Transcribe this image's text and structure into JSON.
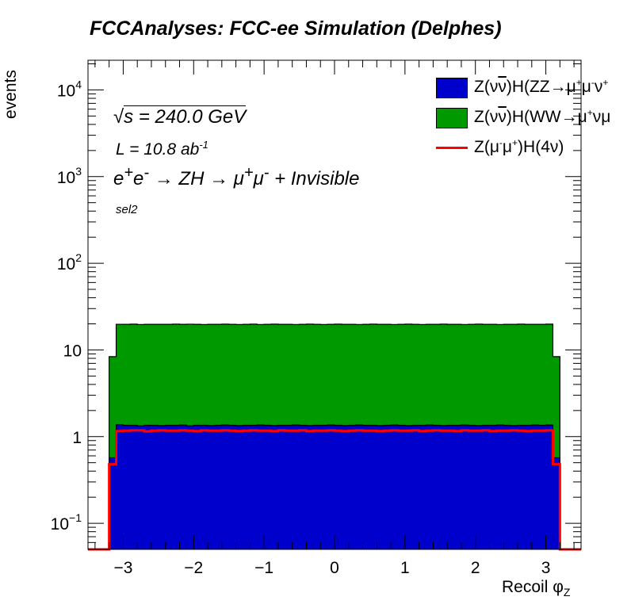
{
  "chart_data": {
    "type": "bar",
    "stacked": true,
    "title": "FCCAnalyses: FCC-ee Simulation (Delphes)",
    "xlabel": "Recoil φ",
    "xlabel_sub": "Z",
    "ylabel": "events",
    "xlim": [
      -3.5,
      3.5
    ],
    "ylim": [
      0.05,
      22000
    ],
    "yscale": "log",
    "x_ticks": [
      "−3",
      "−2",
      "−1",
      "0",
      "1",
      "2",
      "3"
    ],
    "x_tick_values": [
      -3,
      -2,
      -1,
      0,
      1,
      2,
      3
    ],
    "y_ticks": [
      {
        "value": 0.1,
        "base": "10",
        "exp": "−1"
      },
      {
        "value": 1,
        "base": "1",
        "exp": ""
      },
      {
        "value": 10,
        "base": "10",
        "exp": ""
      },
      {
        "value": 100,
        "base": "10",
        "exp": "2"
      },
      {
        "value": 1000,
        "base": "10",
        "exp": "3"
      },
      {
        "value": 10000,
        "base": "10",
        "exp": "4"
      }
    ],
    "bin_start": -3.2,
    "bin_width": 0.1,
    "series": [
      {
        "name": "Z(νν̄)H(ZZ→μ⁺μ⁻ν⁺",
        "label_html": "Z(ν<span style=\"text-decoration:overline\">ν</span>)H(ZZ→μ<sup>+</sup>μ<sup>-</sup>ν<sup>+</sup>",
        "kind": "fill",
        "color": "#0000cc",
        "values": [
          0.57,
          1.37,
          1.35,
          1.35,
          1.33,
          1.35,
          1.35,
          1.34,
          1.35,
          1.35,
          1.36,
          1.33,
          1.35,
          1.35,
          1.34,
          1.35,
          1.36,
          1.35,
          1.34,
          1.35,
          1.35,
          1.36,
          1.35,
          1.34,
          1.35,
          1.35,
          1.36,
          1.35,
          1.34,
          1.35,
          1.35,
          1.36,
          1.35,
          1.34,
          1.35,
          1.36,
          1.35,
          1.35,
          1.34,
          1.35,
          1.36,
          1.35,
          1.34,
          1.35,
          1.35,
          1.36,
          1.35,
          1.34,
          1.35,
          1.35,
          1.36,
          1.35,
          1.34,
          1.35,
          1.35,
          1.36,
          1.35,
          1.34,
          1.35,
          1.35,
          1.36,
          1.35,
          1.36,
          0.57
        ]
      },
      {
        "name": "Z(νν̄)H(WW→μ⁺νμ",
        "label_html": "Z(ν<span style=\"text-decoration:overline\">ν</span>)H(WW→μ<sup>+</sup>νμ",
        "kind": "fill",
        "color": "#009900",
        "values": [
          7.8,
          18.4,
          18.4,
          18.5,
          18.3,
          18.4,
          18.4,
          18.4,
          18.4,
          18.5,
          18.4,
          18.5,
          18.4,
          18.3,
          18.4,
          18.4,
          18.5,
          18.4,
          18.3,
          18.4,
          18.5,
          18.3,
          18.4,
          18.5,
          18.4,
          18.4,
          18.3,
          18.4,
          18.5,
          18.4,
          18.3,
          18.4,
          18.5,
          18.4,
          18.4,
          18.3,
          18.4,
          18.5,
          18.4,
          18.4,
          18.3,
          18.4,
          18.5,
          18.4,
          18.3,
          18.4,
          18.4,
          18.5,
          18.4,
          18.4,
          18.3,
          18.4,
          18.5,
          18.4,
          18.4,
          18.3,
          18.4,
          18.4,
          18.5,
          18.4,
          18.4,
          18.4,
          18.5,
          7.8
        ]
      },
      {
        "name": "Z(μ⁻μ⁺)H(4ν)",
        "label_html": "Z(μ<sup>-</sup>μ<sup>+</sup>)H(4ν)",
        "kind": "line",
        "color": "#ff0000",
        "values": [
          0.48,
          1.16,
          1.17,
          1.18,
          1.18,
          1.15,
          1.17,
          1.18,
          1.17,
          1.17,
          1.18,
          1.17,
          1.16,
          1.18,
          1.17,
          1.17,
          1.18,
          1.17,
          1.16,
          1.17,
          1.18,
          1.17,
          1.17,
          1.16,
          1.18,
          1.17,
          1.17,
          1.18,
          1.16,
          1.17,
          1.17,
          1.18,
          1.17,
          1.16,
          1.17,
          1.18,
          1.17,
          1.17,
          1.16,
          1.17,
          1.18,
          1.17,
          1.17,
          1.18,
          1.16,
          1.17,
          1.18,
          1.17,
          1.17,
          1.16,
          1.18,
          1.17,
          1.17,
          1.18,
          1.16,
          1.17,
          1.17,
          1.18,
          1.17,
          1.16,
          1.17,
          1.17,
          1.18,
          0.48
        ]
      }
    ],
    "annotations": {
      "sqrt_s": "s = 240.0 GeV",
      "lumi": "L = 10.8 ab",
      "lumi_exp": "-1",
      "process_html": "e<sup>+</sup>e<sup>-</sup> → ZH → μ<sup>+</sup>μ<sup>-</sup> + Invisible",
      "process": "e+e- → ZH → μ+μ- + Invisible",
      "selection": "sel2"
    },
    "legend_placement": "top-right",
    "grid": false
  }
}
